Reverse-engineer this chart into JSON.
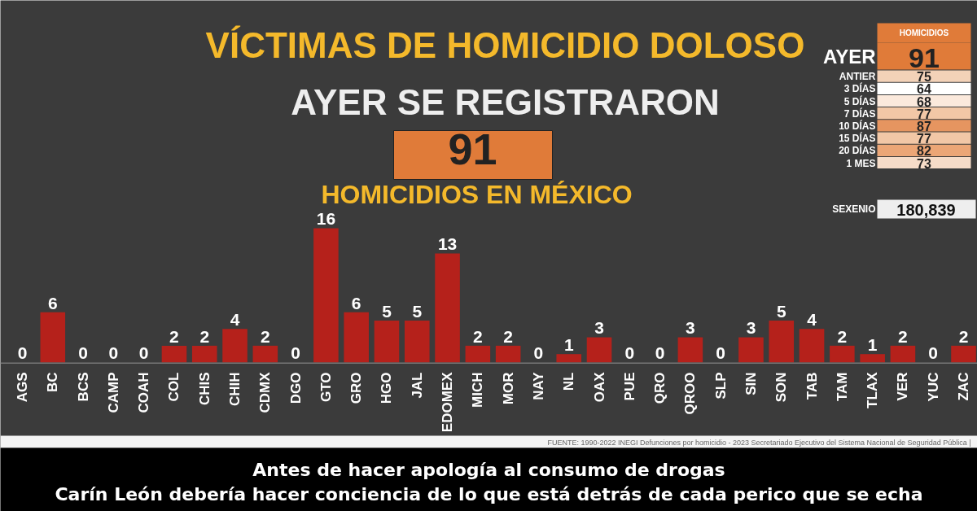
{
  "chart_data": {
    "type": "bar",
    "title": "VÍCTIMAS DE HOMICIDIO DOLOSO",
    "subtitle": "AYER SE REGISTRARON",
    "categories": [
      "AGS",
      "BC",
      "BCS",
      "CAMP",
      "COAH",
      "COL",
      "CHIS",
      "CHIH",
      "CDMX",
      "DGO",
      "GTO",
      "GRO",
      "HGO",
      "JAL",
      "EDOMEX",
      "MICH",
      "MOR",
      "NAY",
      "NL",
      "OAX",
      "PUE",
      "QRO",
      "QROO",
      "SLP",
      "SIN",
      "SON",
      "TAB",
      "TAM",
      "TLAX",
      "VER",
      "YUC",
      "ZAC"
    ],
    "values": [
      0,
      6,
      0,
      0,
      0,
      2,
      2,
      4,
      2,
      0,
      16,
      6,
      5,
      5,
      13,
      2,
      2,
      0,
      1,
      3,
      0,
      0,
      3,
      0,
      3,
      5,
      4,
      2,
      1,
      2,
      0,
      2
    ],
    "color": "#b5211b",
    "data_labels": true,
    "grid": false,
    "annotations": [
      "91",
      "HOMICIDIOS EN MÉXICO",
      "HOMICIDIOS",
      "AYER",
      "91",
      "ANTIER",
      "75",
      "3 DÍAS",
      "64",
      "5 DÍAS",
      "68",
      "7 DÍAS",
      "77",
      "10 DÍAS",
      "87",
      "15 DÍAS",
      "77",
      "20 DÍAS",
      "82",
      "1 MES",
      "73",
      "SEXENIO",
      "180,839",
      "FUENTE: 1990-2022 INEGI Defunciones por homicidio - 2023 Secretariado Ejecutivo del Sistema Nacional de Seguridad Pública |",
      "Antes de hacer apología al consumo de drogas",
      "Carín León debería hacer conciencia de lo que está detrás de cada perico que se echa"
    ]
  }
}
